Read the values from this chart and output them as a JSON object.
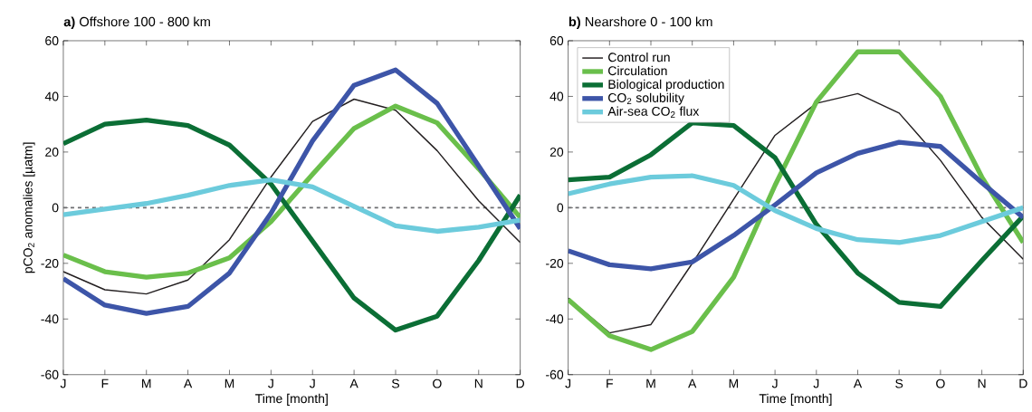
{
  "chart_data": [
    {
      "type": "line",
      "title": "**a)** Offshore 100 - 800 km",
      "xlabel": "Time [month]",
      "ylabel": "pCO$_{2}$ anomalies [µatm]",
      "categories": [
        "J",
        "F",
        "M",
        "A",
        "M",
        "J",
        "J",
        "A",
        "S",
        "O",
        "N",
        "D"
      ],
      "ylim": [
        -60,
        60
      ],
      "yticks": [
        -60,
        -40,
        -20,
        0,
        20,
        40,
        60
      ],
      "legend": false,
      "ref_lines": [
        {
          "axis": "y",
          "value": 0,
          "color": "#6d6e71",
          "line_style": "dashed"
        }
      ],
      "series": [
        {
          "color": "#231f20",
          "values": [
            -23,
            -29.5,
            -31,
            -26,
            -11.5,
            11,
            31,
            39,
            35,
            20.5,
            2.5,
            -12.5
          ]
        },
        {
          "color": "#6abf4b",
          "values": [
            -17,
            -23,
            -25,
            -23.5,
            -18,
            -5,
            12,
            28.5,
            36.5,
            30.5,
            14,
            -3.5
          ]
        },
        {
          "color": "#0b6e35",
          "values": [
            23,
            30,
            31.5,
            29.5,
            22.5,
            8.5,
            -12,
            -32.5,
            -44,
            -39,
            -19,
            4.5
          ]
        },
        {
          "color": "#3d55a8",
          "values": [
            -25.5,
            -35,
            -38,
            -35.5,
            -23.5,
            -2,
            24,
            44,
            49.5,
            37.5,
            15,
            -7.5
          ]
        },
        {
          "color": "#6ccbdc",
          "values": [
            -2.5,
            -0.5,
            1.5,
            4.5,
            8,
            10,
            7.5,
            0.5,
            -6.5,
            -8.5,
            -7,
            -4.5
          ]
        }
      ]
    },
    {
      "type": "line",
      "title": "**b)** Nearshore 0 - 100 km",
      "xlabel": "Time [month]",
      "categories": [
        "J",
        "F",
        "M",
        "A",
        "M",
        "J",
        "J",
        "A",
        "S",
        "O",
        "N",
        "D"
      ],
      "ylim": [
        -60,
        60
      ],
      "yticks": [
        -60,
        -40,
        -20,
        0,
        20,
        40,
        60
      ],
      "legend": "top left",
      "ref_lines": [
        {
          "axis": "y",
          "value": 0,
          "color": "#6d6e71",
          "line_style": "dashed"
        }
      ],
      "series": [
        {
          "name": "Control run",
          "color": "#231f20",
          "values": [
            -32.5,
            -45,
            -42,
            -20,
            3,
            26,
            37.5,
            41,
            34,
            17,
            -3.5,
            -18.5
          ]
        },
        {
          "name": "Circulation",
          "color": "#6abf4b",
          "values": [
            -33,
            -46,
            -51,
            -44.5,
            -25,
            8,
            38,
            56,
            56,
            40,
            11,
            -12.5
          ]
        },
        {
          "name": "Biological production",
          "color": "#0b6e35",
          "values": [
            10,
            11,
            19,
            30.5,
            29.5,
            18,
            -6,
            -23.5,
            -34,
            -35.5,
            -19,
            -3
          ]
        },
        {
          "name": "CO$_{2}$ solubility",
          "color": "#3d55a8",
          "values": [
            -15.5,
            -20.5,
            -22,
            -19.5,
            -10,
            1,
            12.5,
            19.5,
            23.5,
            22,
            9,
            -3.5
          ]
        },
        {
          "name": "Air-sea CO$_{2}$ flux",
          "color": "#6ccbdc",
          "values": [
            5,
            8.5,
            11,
            11.5,
            8,
            -1,
            -7.5,
            -11.5,
            -12.5,
            -10,
            -5,
            0
          ]
        }
      ]
    }
  ]
}
